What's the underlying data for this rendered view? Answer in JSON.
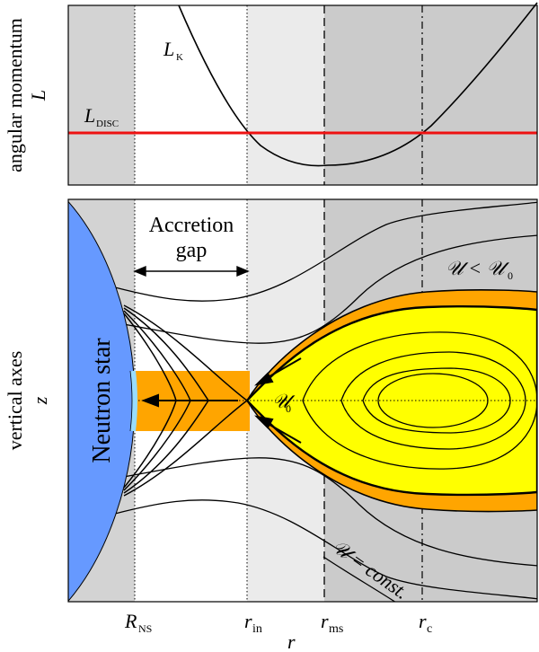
{
  "top_panel": {
    "y_label_line1": "angular momentum",
    "y_label_line2": "L",
    "lk_label": "L",
    "lk_sub": "K",
    "ldisc_label": "L",
    "ldisc_sub": "DISC"
  },
  "bottom_panel": {
    "y_label_line1": "vertical axes",
    "y_label_line2": "z",
    "star_label": "Neutron star",
    "gap_label_line1": "Accretion",
    "gap_label_line2": "gap",
    "u_lt_u0": "𝒰 < 𝒰",
    "u_lt_u0_sub": "0",
    "u0": "𝒰",
    "u0_sub": "0",
    "u_const": "𝒰 = const."
  },
  "x_axis": {
    "label": "r",
    "ticks": [
      {
        "main": "R",
        "sub": "NS"
      },
      {
        "main": "r",
        "sub": "in"
      },
      {
        "main": "r",
        "sub": "ms"
      },
      {
        "main": "r",
        "sub": "c"
      }
    ]
  },
  "colors": {
    "outer_gray": "#d3d3d3",
    "light_gray": "#ebebeb",
    "dark_gray": "#cbcbcb",
    "disc_line": "#ee1111",
    "star": "#6699ff",
    "star_cap": "#99ddff",
    "torus_outer": "#ffa500",
    "torus_inner": "#ffff00"
  }
}
